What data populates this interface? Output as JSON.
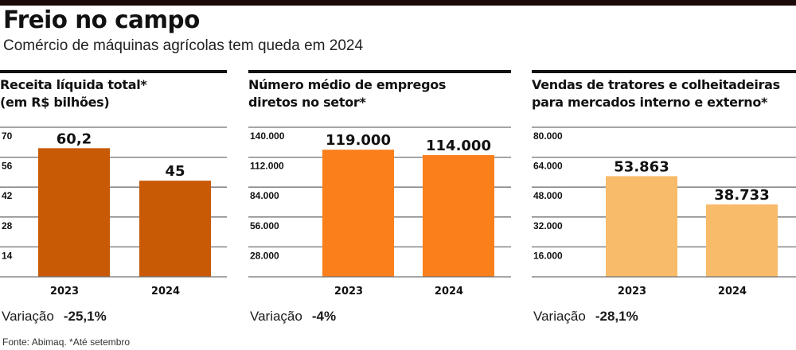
{
  "header": {
    "title": "Freio no campo",
    "subtitle": "Comércio de máquinas agrícolas tem queda em 2024"
  },
  "footer": {
    "source": "Fonte: Abimaq. *Até setembro"
  },
  "colors": {
    "top_bar": "#1a0a08",
    "panel1_bar": "#c85a06",
    "panel2_bar": "#fb7f1a",
    "panel3_bar": "#f8bb6a",
    "gridline": "#666666"
  },
  "panels": [
    {
      "title_line1": "Receita líquida total*",
      "title_line2": "(em R$ bilhões)",
      "variation_label": "Variação",
      "variation_value": "-25,1%"
    },
    {
      "title_line1": "Número médio de empregos",
      "title_line2": "diretos no setor*",
      "variation_label": "Variação",
      "variation_value": "-4%"
    },
    {
      "title_line1": "Vendas de tratores e colheitadeiras",
      "title_line2": "para mercados interno e externo*",
      "variation_label": "Variação",
      "variation_value": "-28,1%"
    }
  ],
  "chart_data": [
    {
      "type": "bar",
      "title": "Receita líquida total* (em R$ bilhões)",
      "categories": [
        "2023",
        "2024"
      ],
      "values": [
        60.2,
        45
      ],
      "value_labels": [
        "60,2",
        "45"
      ],
      "yticks": [
        14,
        28,
        42,
        56,
        70
      ],
      "ytick_labels": [
        "14",
        "28",
        "42",
        "56",
        "70"
      ],
      "ylim": [
        0,
        70
      ],
      "xlabel": "",
      "ylabel": "",
      "grid": true,
      "color": "#c85a06"
    },
    {
      "type": "bar",
      "title": "Número médio de empregos diretos no setor*",
      "categories": [
        "2023",
        "2024"
      ],
      "values": [
        119000,
        114000
      ],
      "value_labels": [
        "119.000",
        "114.000"
      ],
      "yticks": [
        28000,
        56000,
        84000,
        112000,
        140000
      ],
      "ytick_labels": [
        "28.000",
        "56.000",
        "84.000",
        "112.000",
        "140.000"
      ],
      "ylim": [
        0,
        140000
      ],
      "xlabel": "",
      "ylabel": "",
      "grid": true,
      "color": "#fb7f1a"
    },
    {
      "type": "bar",
      "title": "Vendas de tratores e colheitadeiras para mercados interno e externo*",
      "categories": [
        "2023",
        "2024"
      ],
      "values": [
        53863,
        38733
      ],
      "value_labels": [
        "53.863",
        "38.733"
      ],
      "yticks": [
        16000,
        32000,
        48000,
        64000,
        80000
      ],
      "ytick_labels": [
        "16.000",
        "32.000",
        "48.000",
        "64.000",
        "80.000"
      ],
      "ylim": [
        0,
        80000
      ],
      "xlabel": "",
      "ylabel": "",
      "grid": true,
      "color": "#f8bb6a"
    }
  ]
}
